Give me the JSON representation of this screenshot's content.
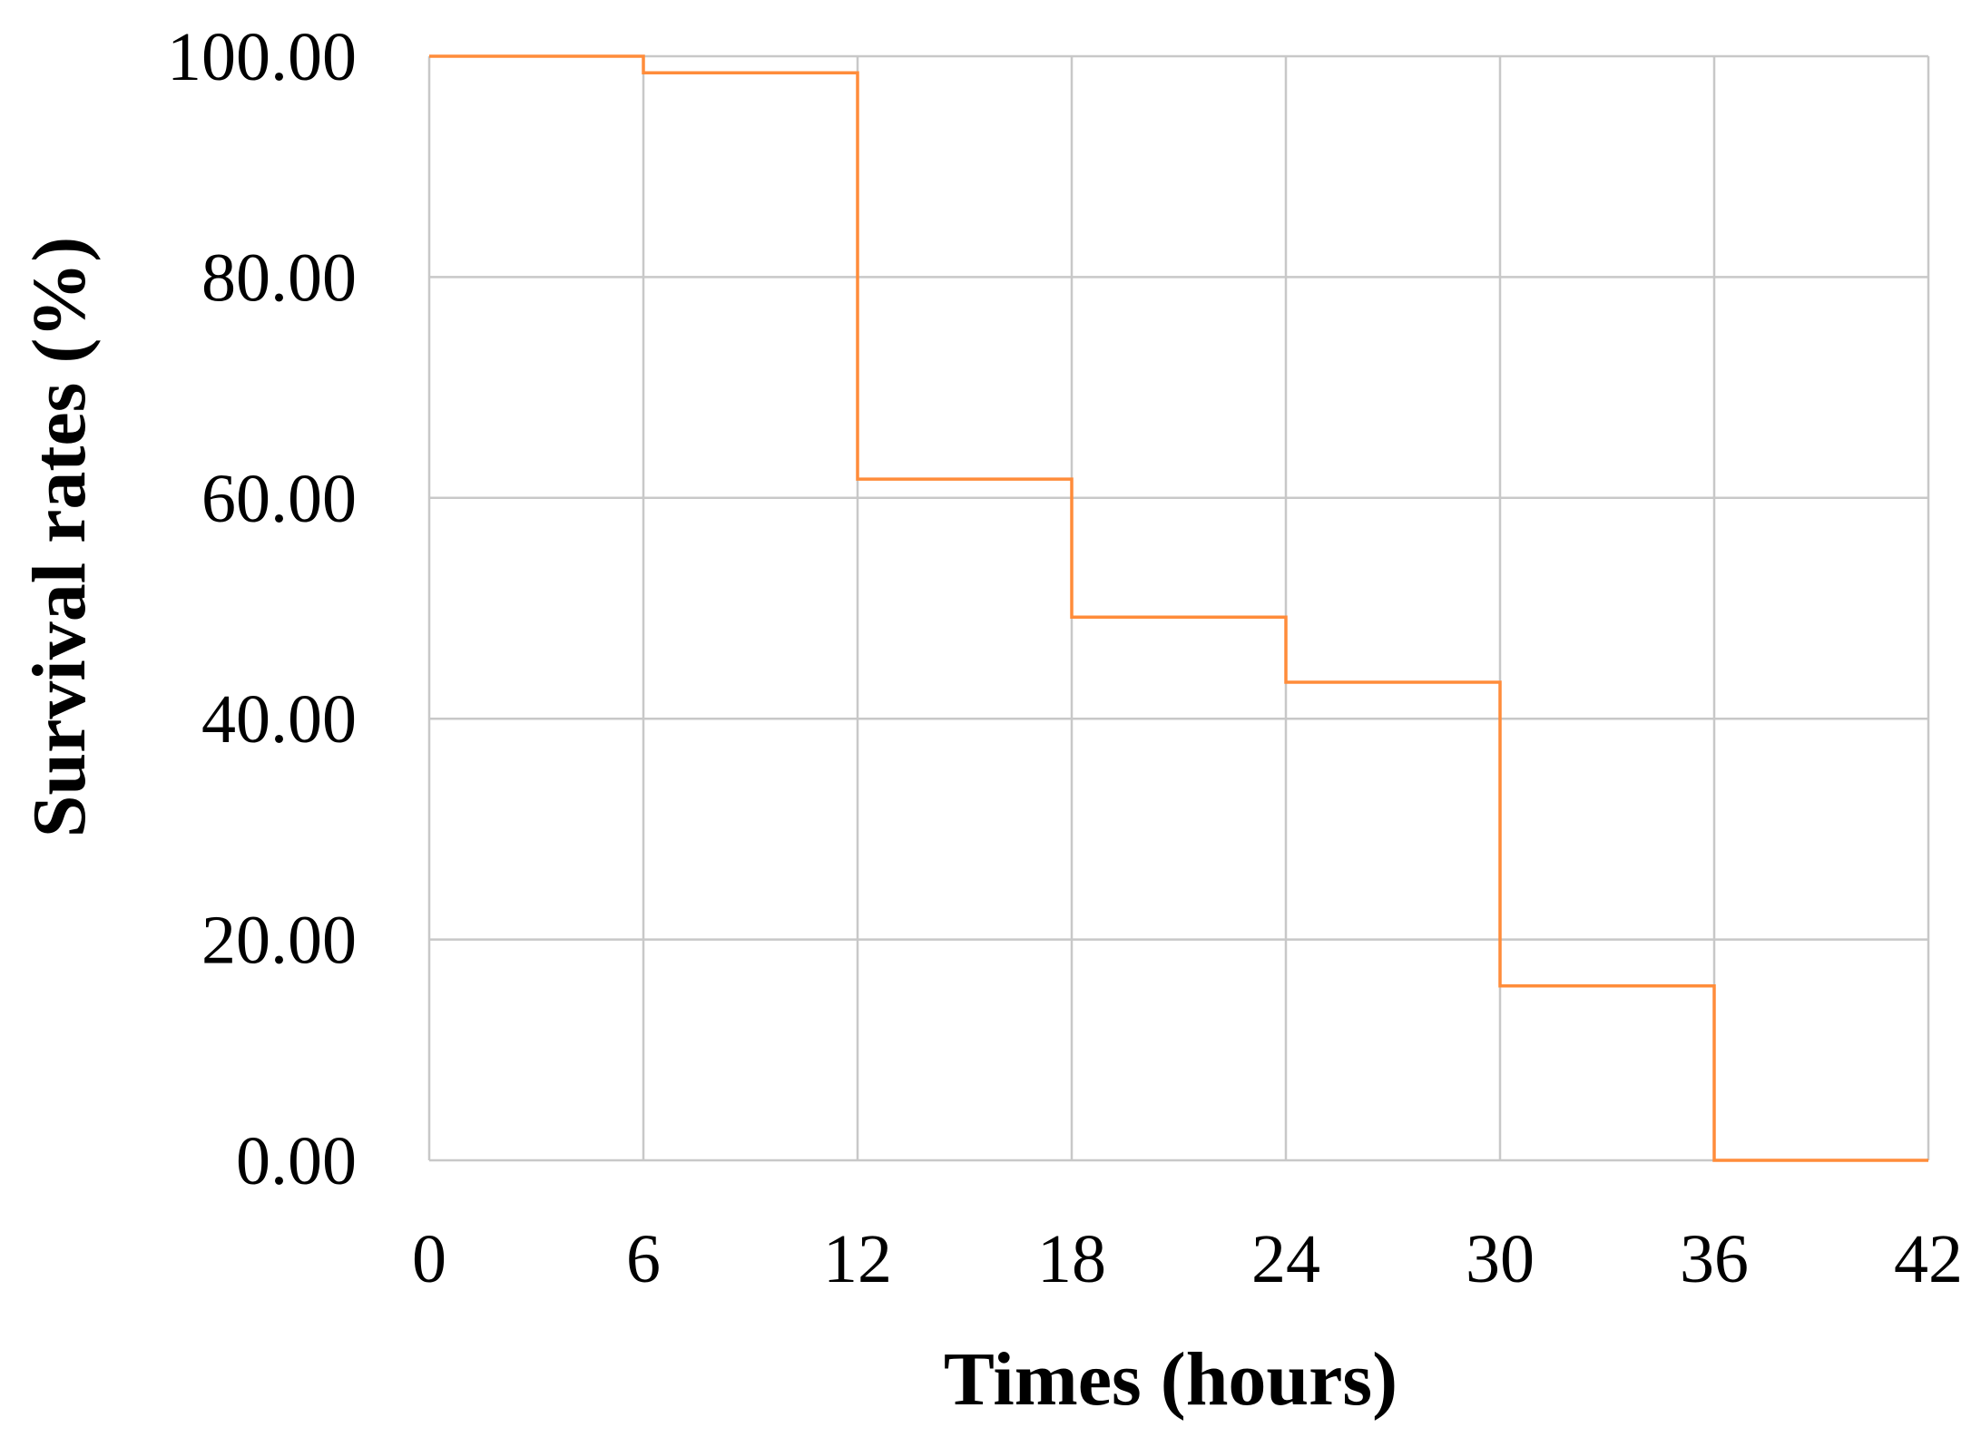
{
  "chart_data": {
    "type": "line",
    "step": true,
    "title": "",
    "xlabel": "Times (hours)",
    "ylabel": "Survival rates (%)",
    "xlim": [
      0,
      42
    ],
    "ylim": [
      0,
      100
    ],
    "x_ticks": [
      "0",
      "6",
      "12",
      "18",
      "24",
      "30",
      "36",
      "42"
    ],
    "x_tick_values": [
      0,
      6,
      12,
      18,
      24,
      30,
      36,
      42
    ],
    "y_ticks": [
      "0.00",
      "20.00",
      "40.00",
      "60.00",
      "80.00",
      "100.00"
    ],
    "y_tick_values": [
      0,
      20,
      40,
      60,
      80,
      100
    ],
    "grid": true,
    "legend": "none",
    "series": [
      {
        "color": "#ff8c3a",
        "x": [
          0,
          6,
          12,
          18,
          24,
          30,
          36,
          42
        ],
        "y": [
          100,
          98.5,
          61.7,
          49.2,
          43.3,
          15.8,
          0,
          0
        ]
      }
    ]
  },
  "colors": {
    "grid": "#c8c8c8",
    "series": "#ff8c3a",
    "text": "#000000"
  }
}
